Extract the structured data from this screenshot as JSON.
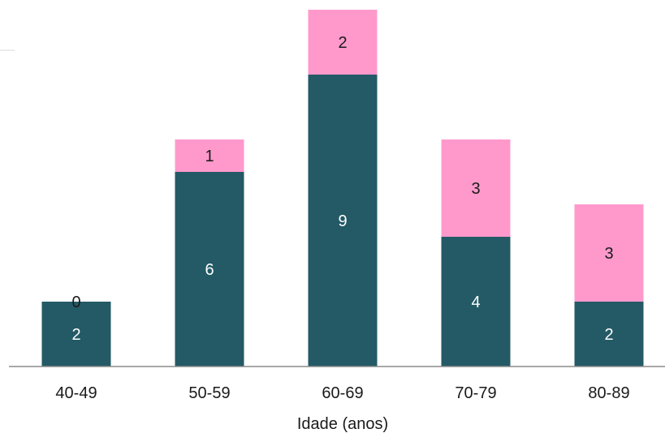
{
  "chart_data": {
    "type": "bar",
    "stacked": true,
    "categories": [
      "40-49",
      "50-59",
      "60-69",
      "70-79",
      "80-89"
    ],
    "series": [
      {
        "values": [
          2,
          6,
          9,
          4,
          2
        ],
        "color": "#235a66",
        "label_color": "#ffffff"
      },
      {
        "values": [
          0,
          1,
          2,
          3,
          3
        ],
        "color": "#ff99cc",
        "label_color": "#1a1a1a"
      }
    ],
    "xlabel": "Idade (anos)",
    "ylim": [
      0,
      11
    ],
    "grid": false,
    "legend": "none"
  }
}
